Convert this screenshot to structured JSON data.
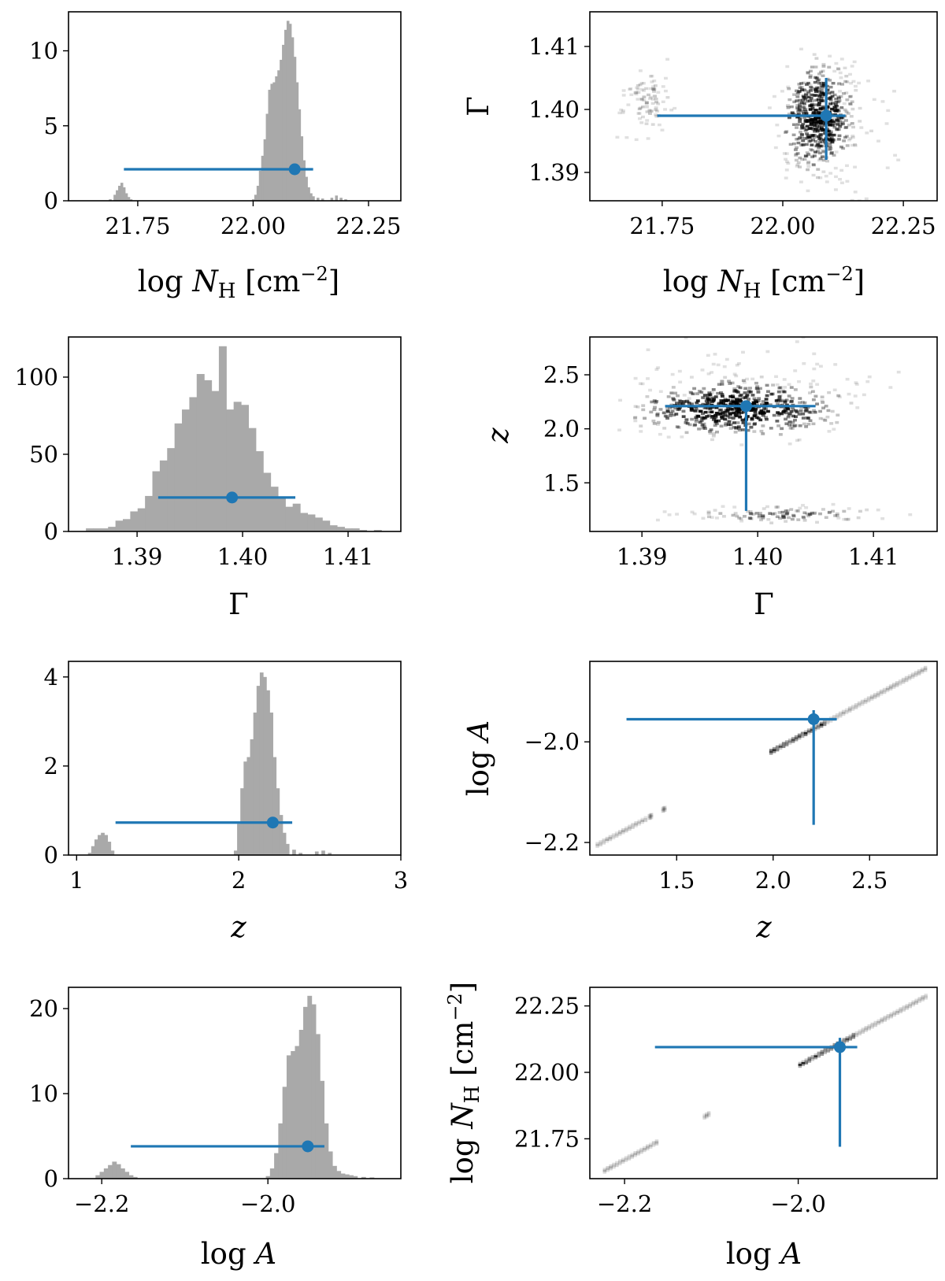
{
  "colors": {
    "errorbar": "#1f77b4",
    "histogram": "#a9a9a9",
    "density": "#000000"
  },
  "chart_data": [
    {
      "id": "hist-nh",
      "type": "bar",
      "xlabel": "log N_H [cm^-2]",
      "ylabel": "",
      "xlim": [
        21.6,
        22.32
      ],
      "ylim": [
        0,
        12.6
      ],
      "xticks": [
        21.75,
        22.0,
        22.25
      ],
      "xtick_labels": [
        "21.75",
        "22.00",
        "22.25"
      ],
      "yticks": [
        0,
        5,
        10
      ],
      "ytick_labels": [
        "0",
        "5",
        "10"
      ],
      "bins": [
        {
          "x": 21.69,
          "h": 0.1
        },
        {
          "x": 21.7,
          "h": 0.4
        },
        {
          "x": 21.705,
          "h": 0.7
        },
        {
          "x": 21.71,
          "h": 1.0
        },
        {
          "x": 21.715,
          "h": 1.2
        },
        {
          "x": 21.72,
          "h": 0.9
        },
        {
          "x": 21.725,
          "h": 0.5
        },
        {
          "x": 21.73,
          "h": 0.25
        },
        {
          "x": 21.735,
          "h": 0.1
        },
        {
          "x": 22.0,
          "h": 0.1
        },
        {
          "x": 22.005,
          "h": 0.4
        },
        {
          "x": 22.01,
          "h": 1.0
        },
        {
          "x": 22.015,
          "h": 2.0
        },
        {
          "x": 22.02,
          "h": 3.0
        },
        {
          "x": 22.025,
          "h": 4.1
        },
        {
          "x": 22.03,
          "h": 5.8
        },
        {
          "x": 22.035,
          "h": 7.4
        },
        {
          "x": 22.04,
          "h": 7.8
        },
        {
          "x": 22.045,
          "h": 7.9
        },
        {
          "x": 22.05,
          "h": 8.3
        },
        {
          "x": 22.055,
          "h": 8.7
        },
        {
          "x": 22.06,
          "h": 9.4
        },
        {
          "x": 22.065,
          "h": 10.4
        },
        {
          "x": 22.07,
          "h": 11.4
        },
        {
          "x": 22.075,
          "h": 12.0
        },
        {
          "x": 22.08,
          "h": 11.8
        },
        {
          "x": 22.085,
          "h": 10.9
        },
        {
          "x": 22.09,
          "h": 9.6
        },
        {
          "x": 22.095,
          "h": 7.9
        },
        {
          "x": 22.1,
          "h": 6.1
        },
        {
          "x": 22.105,
          "h": 4.3
        },
        {
          "x": 22.11,
          "h": 2.7
        },
        {
          "x": 22.115,
          "h": 1.6
        },
        {
          "x": 22.12,
          "h": 0.9
        },
        {
          "x": 22.125,
          "h": 0.5
        },
        {
          "x": 22.13,
          "h": 0.3
        },
        {
          "x": 22.14,
          "h": 0.2
        },
        {
          "x": 22.15,
          "h": 0.15
        },
        {
          "x": 22.17,
          "h": 0.2
        },
        {
          "x": 22.18,
          "h": 0.35
        },
        {
          "x": 22.19,
          "h": 0.2
        },
        {
          "x": 22.2,
          "h": 0.1
        }
      ],
      "bin_width": 0.005,
      "estimate": {
        "x": 22.09,
        "y": 2.1,
        "xlo": 21.72,
        "xhi": 22.13
      }
    },
    {
      "id": "scatter-nh-gamma",
      "type": "heatmap",
      "xlabel": "log N_H [cm^-2]",
      "ylabel": "Γ",
      "xlim": [
        21.6,
        22.32
      ],
      "ylim": [
        1.3855,
        1.4155
      ],
      "xticks": [
        21.75,
        22.0,
        22.25
      ],
      "xtick_labels": [
        "21.75",
        "22.00",
        "22.25"
      ],
      "yticks": [
        1.39,
        1.4,
        1.41
      ],
      "ytick_labels": [
        "1.39",
        "1.40",
        "1.41"
      ],
      "clusters": [
        {
          "cx": 21.72,
          "cy": 1.4015,
          "sx": 0.03,
          "sy": 0.0025,
          "n": 90,
          "dark": 0.2
        },
        {
          "cx": 22.07,
          "cy": 1.399,
          "sx": 0.035,
          "sy": 0.004,
          "n": 520,
          "dark": 0.75
        },
        {
          "cx": 22.12,
          "cy": 1.398,
          "sx": 0.06,
          "sy": 0.006,
          "n": 80,
          "dark": 0.15
        }
      ],
      "estimate": {
        "x": 22.09,
        "y": 1.399,
        "xlo": 21.74,
        "xhi": 22.13,
        "ylo": 1.392,
        "yhi": 1.405
      }
    },
    {
      "id": "hist-gamma",
      "type": "bar",
      "xlabel": "Γ",
      "ylabel": "",
      "xlim": [
        1.3835,
        1.415
      ],
      "ylim": [
        0,
        126
      ],
      "xticks": [
        1.39,
        1.4,
        1.41
      ],
      "xtick_labels": [
        "1.39",
        "1.40",
        "1.41"
      ],
      "yticks": [
        0,
        50,
        100
      ],
      "ytick_labels": [
        "0",
        "50",
        "100"
      ],
      "bins": [
        {
          "x": 1.3855,
          "h": 2
        },
        {
          "x": 1.3862,
          "h": 2
        },
        {
          "x": 1.3869,
          "h": 2
        },
        {
          "x": 1.3876,
          "h": 3
        },
        {
          "x": 1.3883,
          "h": 7
        },
        {
          "x": 1.389,
          "h": 8
        },
        {
          "x": 1.3897,
          "h": 13
        },
        {
          "x": 1.3904,
          "h": 15
        },
        {
          "x": 1.3911,
          "h": 23
        },
        {
          "x": 1.3918,
          "h": 39
        },
        {
          "x": 1.3925,
          "h": 46
        },
        {
          "x": 1.3932,
          "h": 54
        },
        {
          "x": 1.3939,
          "h": 70
        },
        {
          "x": 1.3946,
          "h": 79
        },
        {
          "x": 1.3953,
          "h": 87
        },
        {
          "x": 1.396,
          "h": 102
        },
        {
          "x": 1.3967,
          "h": 98
        },
        {
          "x": 1.3974,
          "h": 91
        },
        {
          "x": 1.3981,
          "h": 120
        },
        {
          "x": 1.3988,
          "h": 79
        },
        {
          "x": 1.3995,
          "h": 84
        },
        {
          "x": 1.4002,
          "h": 82
        },
        {
          "x": 1.4009,
          "h": 67
        },
        {
          "x": 1.4016,
          "h": 52
        },
        {
          "x": 1.4023,
          "h": 38
        },
        {
          "x": 1.403,
          "h": 29
        },
        {
          "x": 1.4037,
          "h": 22
        },
        {
          "x": 1.4044,
          "h": 16
        },
        {
          "x": 1.4051,
          "h": 18
        },
        {
          "x": 1.4058,
          "h": 12
        },
        {
          "x": 1.4065,
          "h": 11
        },
        {
          "x": 1.4072,
          "h": 9
        },
        {
          "x": 1.4079,
          "h": 7
        },
        {
          "x": 1.4086,
          "h": 4
        },
        {
          "x": 1.4093,
          "h": 3
        },
        {
          "x": 1.41,
          "h": 2
        },
        {
          "x": 1.4107,
          "h": 2
        },
        {
          "x": 1.4114,
          "h": 1
        },
        {
          "x": 1.4128,
          "h": 1
        }
      ],
      "bin_width": 0.0007,
      "estimate": {
        "x": 1.399,
        "y": 22,
        "xlo": 1.392,
        "xhi": 1.405
      }
    },
    {
      "id": "scatter-gamma-z",
      "type": "heatmap",
      "xlabel": "Γ",
      "ylabel": "z",
      "xlim": [
        1.3855,
        1.4155
      ],
      "ylim": [
        1.05,
        2.85
      ],
      "xticks": [
        1.39,
        1.4,
        1.41
      ],
      "xtick_labels": [
        "1.39",
        "1.40",
        "1.41"
      ],
      "yticks": [
        1.5,
        2.0,
        2.5
      ],
      "ytick_labels": [
        "1.5",
        "2.0",
        "2.5"
      ],
      "clusters": [
        {
          "cx": 1.398,
          "cy": 2.2,
          "sx": 0.004,
          "sy": 0.12,
          "n": 540,
          "dark": 0.85
        },
        {
          "cx": 1.402,
          "cy": 1.22,
          "sx": 0.004,
          "sy": 0.04,
          "n": 110,
          "dark": 0.35
        },
        {
          "cx": 1.398,
          "cy": 2.45,
          "sx": 0.006,
          "sy": 0.18,
          "n": 70,
          "dark": 0.12
        }
      ],
      "estimate": {
        "x": 1.399,
        "y": 2.21,
        "xlo": 1.392,
        "xhi": 1.405,
        "ylo": 1.24,
        "yhi": 2.21
      }
    },
    {
      "id": "hist-z",
      "type": "bar",
      "xlabel": "z",
      "ylabel": "",
      "xlim": [
        0.95,
        3.0
      ],
      "ylim": [
        0,
        4.35
      ],
      "xticks": [
        1,
        2,
        3
      ],
      "xtick_labels": [
        "1",
        "2",
        "3"
      ],
      "yticks": [
        0,
        2,
        4
      ],
      "ytick_labels": [
        "0",
        "2",
        "4"
      ],
      "bins": [
        {
          "x": 1.08,
          "h": 0.05
        },
        {
          "x": 1.1,
          "h": 0.2
        },
        {
          "x": 1.12,
          "h": 0.35
        },
        {
          "x": 1.14,
          "h": 0.45
        },
        {
          "x": 1.16,
          "h": 0.5
        },
        {
          "x": 1.18,
          "h": 0.45
        },
        {
          "x": 1.2,
          "h": 0.3
        },
        {
          "x": 1.22,
          "h": 0.1
        },
        {
          "x": 1.98,
          "h": 0.1
        },
        {
          "x": 2.0,
          "h": 0.7
        },
        {
          "x": 2.02,
          "h": 1.5
        },
        {
          "x": 2.04,
          "h": 2.1
        },
        {
          "x": 2.06,
          "h": 2.2
        },
        {
          "x": 2.08,
          "h": 2.6
        },
        {
          "x": 2.1,
          "h": 3.2
        },
        {
          "x": 2.12,
          "h": 3.8
        },
        {
          "x": 2.14,
          "h": 4.1
        },
        {
          "x": 2.16,
          "h": 4.0
        },
        {
          "x": 2.18,
          "h": 3.7
        },
        {
          "x": 2.2,
          "h": 3.2
        },
        {
          "x": 2.22,
          "h": 2.2
        },
        {
          "x": 2.24,
          "h": 1.5
        },
        {
          "x": 2.26,
          "h": 0.9
        },
        {
          "x": 2.28,
          "h": 0.5
        },
        {
          "x": 2.3,
          "h": 0.25
        },
        {
          "x": 2.34,
          "h": 0.12
        },
        {
          "x": 2.38,
          "h": 0.05
        },
        {
          "x": 2.48,
          "h": 0.08
        },
        {
          "x": 2.52,
          "h": 0.1
        },
        {
          "x": 2.56,
          "h": 0.05
        }
      ],
      "bin_width": 0.02,
      "estimate": {
        "x": 2.21,
        "y": 0.73,
        "xlo": 1.24,
        "xhi": 2.33
      }
    },
    {
      "id": "scatter-z-loga",
      "type": "heatmap",
      "xlabel": "z",
      "ylabel": "log A",
      "xlim": [
        1.05,
        2.85
      ],
      "ylim": [
        -2.225,
        -1.84
      ],
      "xticks": [
        1.5,
        2.0,
        2.5
      ],
      "xtick_labels": [
        "1.5",
        "2.0",
        "2.5"
      ],
      "yticks": [
        -2.0,
        -2.2
      ],
      "ytick_labels": [
        "−2.0",
        "−2.2"
      ],
      "band": {
        "x0": 1.08,
        "y0": -2.205,
        "x1": 2.78,
        "y1": -1.855,
        "segments": [
          [
            1.08,
            1.33
          ],
          [
            1.35,
            1.36
          ],
          [
            1.42,
            1.43
          ],
          [
            1.98,
            2.78
          ]
        ]
      },
      "dense": {
        "x0": 1.97,
        "x1": 2.26
      },
      "estimate": {
        "x": 2.21,
        "y": -1.955,
        "xlo": 1.24,
        "xhi": 2.33,
        "ylo": -2.165,
        "yhi": -1.937
      }
    },
    {
      "id": "hist-loga",
      "type": "bar",
      "xlabel": "log A",
      "ylabel": "",
      "xlim": [
        -2.24,
        -1.84
      ],
      "ylim": [
        0,
        22.5
      ],
      "xticks": [
        -2.2,
        -2.0
      ],
      "xtick_labels": [
        "−2.2",
        "−2.0"
      ],
      "yticks": [
        0,
        10,
        20
      ],
      "ytick_labels": [
        "0",
        "10",
        "20"
      ],
      "bins": [
        {
          "x": -2.205,
          "h": 0.4
        },
        {
          "x": -2.2,
          "h": 0.8
        },
        {
          "x": -2.195,
          "h": 1.2
        },
        {
          "x": -2.19,
          "h": 1.6
        },
        {
          "x": -2.185,
          "h": 2.0
        },
        {
          "x": -2.18,
          "h": 1.7
        },
        {
          "x": -2.175,
          "h": 1.2
        },
        {
          "x": -2.17,
          "h": 0.8
        },
        {
          "x": -2.165,
          "h": 0.4
        },
        {
          "x": -2.16,
          "h": 0.2
        },
        {
          "x": -2.0,
          "h": 0.3
        },
        {
          "x": -1.995,
          "h": 1.2
        },
        {
          "x": -1.99,
          "h": 3.0
        },
        {
          "x": -1.985,
          "h": 6.5
        },
        {
          "x": -1.98,
          "h": 10.8
        },
        {
          "x": -1.975,
          "h": 14.5
        },
        {
          "x": -1.97,
          "h": 15.0
        },
        {
          "x": -1.965,
          "h": 15.6
        },
        {
          "x": -1.96,
          "h": 17.5
        },
        {
          "x": -1.955,
          "h": 20.2
        },
        {
          "x": -1.95,
          "h": 21.5
        },
        {
          "x": -1.945,
          "h": 20.5
        },
        {
          "x": -1.94,
          "h": 17.0
        },
        {
          "x": -1.935,
          "h": 11.5
        },
        {
          "x": -1.93,
          "h": 6.5
        },
        {
          "x": -1.925,
          "h": 3.2
        },
        {
          "x": -1.92,
          "h": 1.5
        },
        {
          "x": -1.915,
          "h": 0.9
        },
        {
          "x": -1.91,
          "h": 0.6
        },
        {
          "x": -1.905,
          "h": 0.5
        },
        {
          "x": -1.9,
          "h": 0.4
        },
        {
          "x": -1.895,
          "h": 0.3
        },
        {
          "x": -1.885,
          "h": 0.2
        },
        {
          "x": -1.875,
          "h": 0.15
        }
      ],
      "bin_width": 0.005,
      "estimate": {
        "x": -1.952,
        "y": 3.8,
        "xlo": -2.165,
        "xhi": -1.932
      }
    },
    {
      "id": "scatter-loga-nh",
      "type": "heatmap",
      "xlabel": "log A",
      "ylabel": "log N_H [cm^-2]",
      "xlim": [
        -2.24,
        -1.84
      ],
      "ylim": [
        21.6,
        22.32
      ],
      "xticks": [
        -2.2,
        -2.0
      ],
      "xtick_labels": [
        "−2.2",
        "−2.0"
      ],
      "yticks": [
        21.75,
        22.0,
        22.25
      ],
      "ytick_labels": [
        "21.75",
        "22.00",
        "22.25"
      ],
      "band": {
        "x0": -2.225,
        "y0": 21.63,
        "x1": -1.855,
        "y1": 22.285,
        "segments": [
          [
            -2.225,
            -2.165
          ],
          [
            -2.11,
            -2.105
          ],
          [
            -2.0,
            -1.855
          ]
        ]
      },
      "dense": {
        "x0": -2.0,
        "x1": -1.935
      },
      "estimate": {
        "x": -1.952,
        "y": 22.095,
        "xlo": -2.165,
        "xhi": -1.932,
        "ylo": 21.72,
        "yhi": 22.13
      }
    }
  ]
}
